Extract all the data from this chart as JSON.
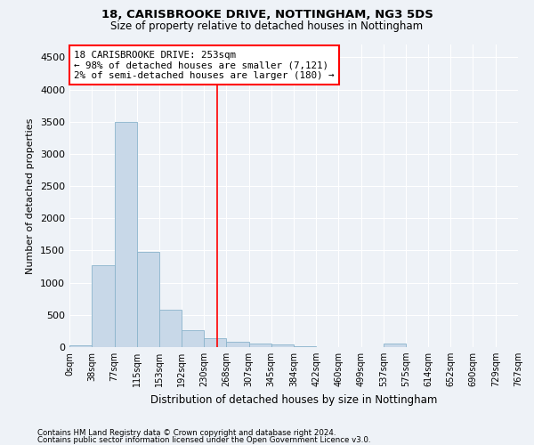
{
  "title1": "18, CARISBROOKE DRIVE, NOTTINGHAM, NG3 5DS",
  "title2": "Size of property relative to detached houses in Nottingham",
  "xlabel": "Distribution of detached houses by size in Nottingham",
  "ylabel": "Number of detached properties",
  "bar_color": "#c8d8e8",
  "bar_edge_color": "#8ab4cc",
  "vline_color": "red",
  "vline_x": 253,
  "bin_edges": [
    0,
    38,
    77,
    115,
    153,
    192,
    230,
    268,
    307,
    345,
    384,
    422,
    460,
    499,
    537,
    575,
    614,
    652,
    690,
    729,
    767
  ],
  "bar_heights": [
    30,
    1270,
    3500,
    1480,
    580,
    260,
    135,
    80,
    55,
    35,
    10,
    5,
    0,
    0,
    50,
    0,
    0,
    0,
    0,
    0
  ],
  "ylim": [
    0,
    4700
  ],
  "yticks": [
    0,
    500,
    1000,
    1500,
    2000,
    2500,
    3000,
    3500,
    4000,
    4500
  ],
  "annotation_title": "18 CARISBROOKE DRIVE: 253sqm",
  "annotation_line1": "← 98% of detached houses are smaller (7,121)",
  "annotation_line2": "2% of semi-detached houses are larger (180) →",
  "footer1": "Contains HM Land Registry data © Crown copyright and database right 2024.",
  "footer2": "Contains public sector information licensed under the Open Government Licence v3.0.",
  "background_color": "#eef2f7",
  "grid_color": "#ffffff"
}
